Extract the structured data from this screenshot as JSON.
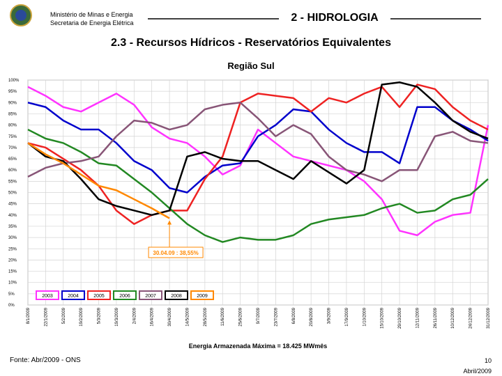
{
  "header": {
    "ministry": "Ministério de Minas e Energia",
    "secretariat": "Secretaria de Energia Elétrica",
    "section": "2 - HIDROLOGIA"
  },
  "chart_data": {
    "type": "line",
    "title": "2.3 - Recursos Hídricos - Reservatórios Equivalentes",
    "subtitle": "Região Sul",
    "x_label": "Energia Armazenada Máxima = 18.425 MWmês",
    "annotation": "30.04.09 : 38,55%",
    "categories": [
      "8/1/2009",
      "22/1/2009",
      "5/2/2009",
      "19/2/2009",
      "5/3/2009",
      "19/3/2009",
      "2/4/2009",
      "16/4/2009",
      "30/4/2009",
      "14/5/2009",
      "28/5/2009",
      "11/6/2009",
      "25/6/2009",
      "9/7/2009",
      "23/7/2009",
      "6/8/2009",
      "20/8/2009",
      "3/9/2009",
      "17/9/2009",
      "1/10/2009",
      "15/10/2009",
      "29/10/2009",
      "12/11/2009",
      "26/11/2009",
      "10/12/2009",
      "24/12/2009",
      "31/12/2009"
    ],
    "series": [
      {
        "name": "2003",
        "color": "#ff33ff",
        "values": [
          97,
          93,
          88,
          86,
          90,
          94,
          89,
          79,
          74,
          72,
          66,
          58,
          62,
          78,
          72,
          66,
          64,
          62,
          60,
          55,
          47,
          33,
          31,
          37,
          40,
          41,
          80
        ]
      },
      {
        "name": "2004",
        "color": "#0000cc",
        "values": [
          90,
          88,
          82,
          78,
          78,
          72,
          64,
          60,
          52,
          50,
          57,
          62,
          63,
          75,
          80,
          87,
          86,
          78,
          72,
          68,
          68,
          63,
          88,
          88,
          82,
          78,
          73
        ]
      },
      {
        "name": "2005",
        "color": "#ee2222",
        "values": [
          72,
          70,
          65,
          60,
          53,
          42,
          36,
          40,
          42,
          42,
          56,
          66,
          90,
          94,
          93,
          92,
          86,
          92,
          90,
          94,
          97,
          88,
          98,
          96,
          88,
          82,
          78
        ]
      },
      {
        "name": "2006",
        "color": "#228822",
        "values": [
          78,
          74,
          72,
          68,
          63,
          62,
          56,
          50,
          43,
          36,
          31,
          28,
          30,
          29,
          29,
          31,
          36,
          38,
          39,
          40,
          43,
          45,
          41,
          42,
          47,
          49,
          56
        ]
      },
      {
        "name": "2007",
        "color": "#885577",
        "values": [
          57,
          61,
          63,
          64,
          66,
          75,
          82,
          81,
          78,
          80,
          87,
          89,
          90,
          83,
          75,
          80,
          76,
          66,
          60,
          58,
          55,
          60,
          60,
          75,
          77,
          73,
          72
        ]
      },
      {
        "name": "2008",
        "color": "#000000",
        "values": [
          72,
          66,
          64,
          56,
          47,
          44,
          42,
          40,
          42,
          66,
          68,
          65,
          64,
          64,
          60,
          56,
          64,
          59,
          54,
          60,
          98,
          99,
          97,
          90,
          82,
          77,
          74
        ]
      },
      {
        "name": "2009",
        "color": "#ff8800",
        "values": [
          72,
          67,
          63,
          58,
          53,
          51,
          47,
          43,
          38.55,
          null,
          null,
          null,
          null,
          null,
          null,
          null,
          null,
          null,
          null,
          null,
          null,
          null,
          null,
          null,
          null,
          null,
          null
        ]
      }
    ],
    "ylim": [
      0,
      100
    ],
    "yticks": [
      {
        "value": 0,
        "label": "0%"
      },
      {
        "value": 5,
        "label": "5%"
      },
      {
        "value": 10,
        "label": "10%"
      },
      {
        "value": 15,
        "label": "15%"
      },
      {
        "value": 20,
        "label": "20%"
      },
      {
        "value": 25,
        "label": "25%"
      },
      {
        "value": 30,
        "label": "30%"
      },
      {
        "value": 35,
        "label": "35%"
      },
      {
        "value": 40,
        "label": "40%"
      },
      {
        "value": 45,
        "label": "45%"
      },
      {
        "value": 50,
        "label": "50%"
      },
      {
        "value": 55,
        "label": "55%"
      },
      {
        "value": 60,
        "label": "60%"
      },
      {
        "value": 65,
        "label": "65%"
      },
      {
        "value": 70,
        "label": "70%"
      },
      {
        "value": 75,
        "label": "75%"
      },
      {
        "value": 80,
        "label": "80%"
      },
      {
        "value": 85,
        "label": "85%"
      },
      {
        "value": 90,
        "label": "90%"
      },
      {
        "value": 95,
        "label": "95%"
      },
      {
        "value": 100,
        "label": "100%"
      }
    ],
    "grid": true
  },
  "footer": {
    "source": "Fonte: Abr/2009 - ONS",
    "page": "10",
    "date": "Abril/2009"
  }
}
